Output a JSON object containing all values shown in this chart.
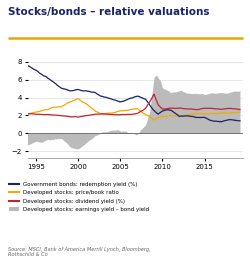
{
  "title": "Stocks/bonds – relative valuations",
  "title_color": "#1a2366",
  "title_fontsize": 7.5,
  "title_bold": true,
  "accent_color": "#E8A800",
  "source_text": "Source: MSCI, Bank of America Merrill Lynch, Bloomberg,\nRothschild & Co",
  "ylim": [
    -2.8,
    9.0
  ],
  "yticks": [
    -2,
    0,
    2,
    4,
    6,
    8
  ],
  "xlabel_ticks": [
    1995,
    2000,
    2005,
    2010,
    2015
  ],
  "line_gov_bond_color": "#1a2366",
  "line_pb_color": "#F5A800",
  "line_div_color": "#C0272D",
  "fill_color": "#BBBBBB",
  "background_color": "#FFFFFF",
  "plot_bg_color": "#FFFFFF",
  "grid_color": "#DDDDDD",
  "legend_items": [
    {
      "label": "Government bonds: redemption yield (%)",
      "color": "#1a2366",
      "lw": 1.5
    },
    {
      "label": "Developed stocks: price/book ratio",
      "color": "#F5A800",
      "lw": 1.5
    },
    {
      "label": "Developed stocks: dividend yield (%)",
      "color": "#C0272D",
      "lw": 1.5
    },
    {
      "label": "Developed stocks: earnings yield – bond yield",
      "color": "#BBBBBB",
      "lw": 8
    }
  ]
}
